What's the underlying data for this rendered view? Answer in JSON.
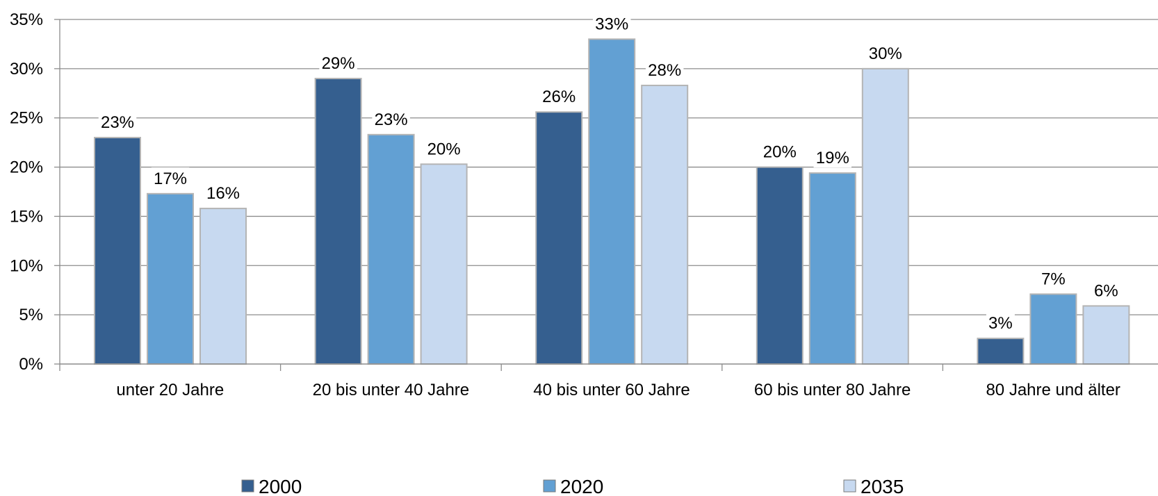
{
  "chart_data": {
    "type": "bar",
    "title": "",
    "xlabel": "",
    "ylabel": "",
    "ylim": [
      0,
      35
    ],
    "y_ticks": [
      0,
      5,
      10,
      15,
      20,
      25,
      30,
      35
    ],
    "y_tick_suffix": "%",
    "grid": true,
    "legend_position": "bottom",
    "categories": [
      "unter 20 Jahre",
      "20 bis unter 40 Jahre",
      "40 bis unter 60 Jahre",
      "60 bis unter 80 Jahre",
      "80 Jahre und älter"
    ],
    "series": [
      {
        "name": "2000",
        "color": "#355f8f",
        "values": [
          23,
          29,
          25.6,
          20,
          2.6
        ],
        "labels": [
          "23%",
          "29%",
          "26%",
          "20%",
          "3%"
        ]
      },
      {
        "name": "2020",
        "color": "#62a0d3",
        "values": [
          17.3,
          23.3,
          33,
          19.4,
          7.1
        ],
        "labels": [
          "17%",
          "23%",
          "33%",
          "19%",
          "7%"
        ]
      },
      {
        "name": "2035",
        "color": "#c7d9f0",
        "values": [
          15.8,
          20.3,
          28.3,
          30,
          5.9
        ],
        "labels": [
          "16%",
          "20%",
          "28%",
          "30%",
          "6%"
        ]
      }
    ]
  }
}
